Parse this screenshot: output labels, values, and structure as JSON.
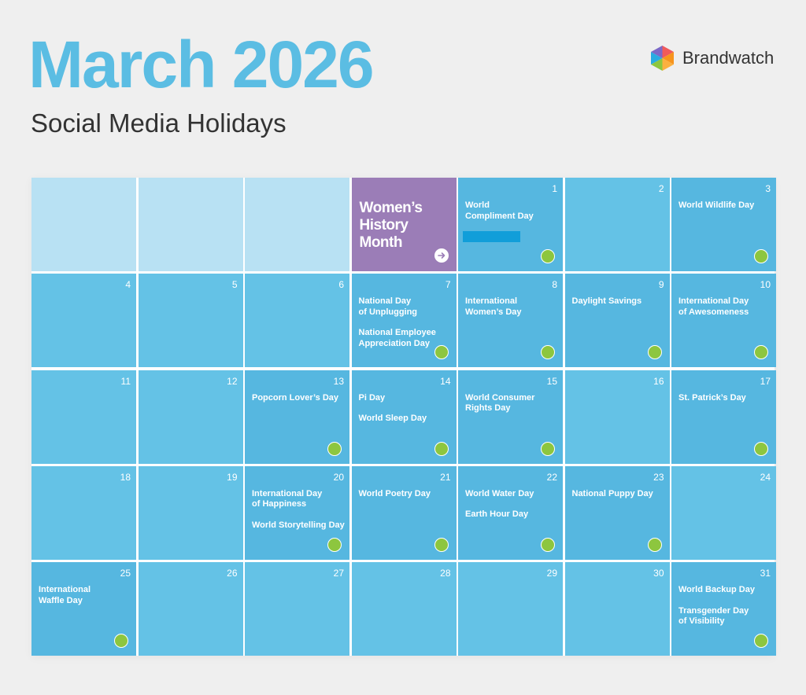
{
  "header": {
    "title": "March 2026",
    "subtitle": "Social Media Holidays",
    "brand_name": "Brandwatch",
    "brand_icon": "brandwatch-logo-icon"
  },
  "colors": {
    "title": "#5bbde3",
    "cell": "#64c2e6",
    "cell_dark": "#56b7e0",
    "cell_empty": "#b8e1f3",
    "featured": "#9b7db7",
    "badge": "#8dc63f",
    "highlight_bar": "#119ed9"
  },
  "calendar": {
    "featured": {
      "label": "Women’s\nHistory\nMonth",
      "icon": "arrow-right-icon"
    },
    "cells": [
      {
        "type": "empty"
      },
      {
        "type": "empty"
      },
      {
        "type": "empty"
      },
      {
        "type": "featured"
      },
      {
        "day": "1",
        "events": [
          "World\nCompliment Day"
        ],
        "badge": true,
        "dark": true,
        "highlight": true
      },
      {
        "day": "2",
        "events": [],
        "badge": false,
        "dark": false
      },
      {
        "day": "3",
        "events": [
          "World Wildlife Day"
        ],
        "badge": true,
        "dark": true
      },
      {
        "day": "4",
        "events": [],
        "badge": false,
        "dark": false
      },
      {
        "day": "5",
        "events": [],
        "badge": false,
        "dark": false
      },
      {
        "day": "6",
        "events": [],
        "badge": false,
        "dark": false
      },
      {
        "day": "7",
        "events": [
          "National Day\nof Unplugging",
          "National Employee\nAppreciation Day"
        ],
        "badge": true,
        "dark": true
      },
      {
        "day": "8",
        "events": [
          "International\nWomen’s Day"
        ],
        "badge": true,
        "dark": true
      },
      {
        "day": "9",
        "events": [
          "Daylight Savings"
        ],
        "badge": true,
        "dark": true
      },
      {
        "day": "10",
        "events": [
          "International Day\nof Awesomeness"
        ],
        "badge": true,
        "dark": true
      },
      {
        "day": "11",
        "events": [],
        "badge": false,
        "dark": false
      },
      {
        "day": "12",
        "events": [],
        "badge": false,
        "dark": false
      },
      {
        "day": "13",
        "events": [
          "Popcorn Lover’s Day"
        ],
        "badge": true,
        "dark": true
      },
      {
        "day": "14",
        "events": [
          "Pi Day",
          "World Sleep Day"
        ],
        "badge": true,
        "dark": true
      },
      {
        "day": "15",
        "events": [
          "World Consumer\nRights Day"
        ],
        "badge": true,
        "dark": true
      },
      {
        "day": "16",
        "events": [],
        "badge": false,
        "dark": false
      },
      {
        "day": "17",
        "events": [
          "St. Patrick’s Day"
        ],
        "badge": true,
        "dark": true
      },
      {
        "day": "18",
        "events": [],
        "badge": false,
        "dark": false
      },
      {
        "day": "19",
        "events": [],
        "badge": false,
        "dark": false
      },
      {
        "day": "20",
        "events": [
          "International Day\nof Happiness",
          "World Storytelling Day"
        ],
        "badge": true,
        "dark": true
      },
      {
        "day": "21",
        "events": [
          "World Poetry Day"
        ],
        "badge": true,
        "dark": true
      },
      {
        "day": "22",
        "events": [
          "World Water Day",
          "Earth Hour Day"
        ],
        "badge": true,
        "dark": true
      },
      {
        "day": "23",
        "events": [
          "National Puppy Day"
        ],
        "badge": true,
        "dark": true
      },
      {
        "day": "24",
        "events": [],
        "badge": false,
        "dark": false
      },
      {
        "day": "25",
        "events": [
          "International\nWaffle Day"
        ],
        "badge": true,
        "dark": true
      },
      {
        "day": "26",
        "events": [],
        "badge": false,
        "dark": false
      },
      {
        "day": "27",
        "events": [],
        "badge": false,
        "dark": false
      },
      {
        "day": "28",
        "events": [],
        "badge": false,
        "dark": false
      },
      {
        "day": "29",
        "events": [],
        "badge": false,
        "dark": false
      },
      {
        "day": "30",
        "events": [],
        "badge": false,
        "dark": false
      },
      {
        "day": "31",
        "events": [
          "World Backup Day",
          "Transgender Day\nof Visibility"
        ],
        "badge": true,
        "dark": true
      }
    ]
  }
}
